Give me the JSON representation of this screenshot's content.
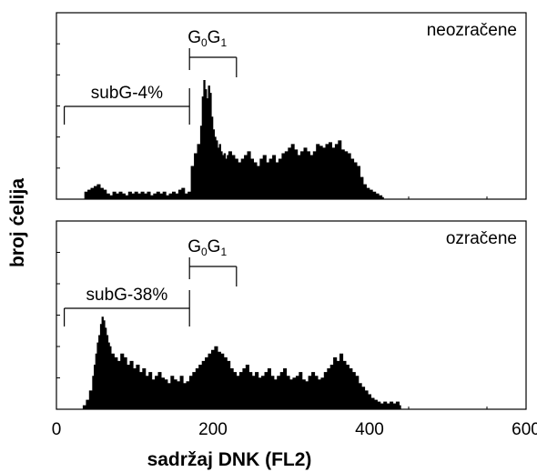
{
  "chart_data": {
    "type": "histogram",
    "xlabel": "sadržaj DNK (FL2)",
    "ylabel": "broj ćelija",
    "x_ticks": [
      0,
      200,
      400,
      600
    ],
    "x_tick_labels": [
      "0",
      "200",
      "400",
      "600"
    ],
    "xlim": [
      0,
      600
    ],
    "grid": false,
    "panels": [
      {
        "label": "neozračene",
        "subG_label": "subG-4%",
        "subG_range": [
          10,
          170
        ],
        "G0G1_label": {
          "base": "G",
          "sub1": "0",
          "mid": "G",
          "sub2": "1"
        },
        "G0G1_range": [
          170,
          230
        ],
        "ylim": [
          0,
          100
        ],
        "series": {
          "x": [
            30,
            36,
            40,
            44,
            48,
            52,
            56,
            60,
            64,
            68,
            72,
            76,
            80,
            84,
            88,
            92,
            96,
            100,
            104,
            108,
            112,
            116,
            120,
            124,
            128,
            132,
            136,
            140,
            144,
            148,
            152,
            156,
            160,
            164,
            168,
            172,
            176,
            180,
            184,
            186,
            188,
            190,
            192,
            194,
            196,
            198,
            200,
            202,
            204,
            206,
            208,
            210,
            212,
            214,
            216,
            218,
            220,
            224,
            228,
            232,
            236,
            240,
            244,
            248,
            252,
            256,
            260,
            264,
            268,
            272,
            276,
            280,
            284,
            288,
            292,
            296,
            300,
            304,
            308,
            312,
            316,
            320,
            324,
            328,
            332,
            336,
            340,
            344,
            348,
            352,
            356,
            360,
            364,
            368,
            372,
            376,
            380,
            384,
            388,
            392,
            396,
            400,
            404,
            408,
            412,
            416,
            418
          ],
          "y": [
            0,
            4,
            5,
            6,
            7,
            8,
            6,
            5,
            3,
            2,
            4,
            3,
            4,
            3,
            2,
            4,
            3,
            4,
            3,
            4,
            3,
            4,
            2,
            3,
            4,
            3,
            4,
            2,
            3,
            4,
            3,
            5,
            6,
            3,
            4,
            18,
            25,
            30,
            40,
            56,
            65,
            60,
            55,
            62,
            58,
            45,
            38,
            34,
            32,
            28,
            30,
            26,
            24,
            25,
            22,
            24,
            26,
            24,
            22,
            20,
            22,
            24,
            26,
            22,
            20,
            18,
            22,
            24,
            20,
            22,
            24,
            20,
            22,
            25,
            26,
            28,
            30,
            27,
            24,
            26,
            28,
            26,
            24,
            26,
            30,
            29,
            28,
            30,
            31,
            28,
            30,
            32,
            27,
            26,
            25,
            22,
            20,
            18,
            12,
            8,
            6,
            5,
            4,
            3,
            2,
            1,
            0
          ]
        }
      },
      {
        "label": "ozračene",
        "subG_label": "subG-38%",
        "subG_range": [
          10,
          170
        ],
        "G0G1_label": {
          "base": "G",
          "sub1": "0",
          "mid": "G",
          "sub2": "1"
        },
        "G0G1_range": [
          170,
          230
        ],
        "ylim": [
          0,
          100
        ],
        "series": {
          "x": [
            30,
            34,
            38,
            42,
            46,
            48,
            50,
            52,
            54,
            56,
            58,
            60,
            62,
            64,
            66,
            68,
            70,
            74,
            78,
            82,
            86,
            90,
            94,
            98,
            102,
            106,
            110,
            114,
            118,
            122,
            126,
            130,
            134,
            138,
            142,
            146,
            150,
            154,
            158,
            162,
            166,
            170,
            174,
            178,
            182,
            186,
            190,
            194,
            198,
            202,
            206,
            210,
            214,
            218,
            222,
            226,
            230,
            234,
            238,
            242,
            246,
            250,
            254,
            258,
            262,
            266,
            270,
            274,
            278,
            282,
            286,
            290,
            294,
            298,
            302,
            306,
            310,
            314,
            318,
            322,
            326,
            330,
            334,
            338,
            342,
            346,
            350,
            354,
            358,
            362,
            366,
            370,
            374,
            378,
            382,
            386,
            390,
            394,
            398,
            402,
            406,
            410,
            414,
            418,
            422,
            426,
            430,
            434,
            438,
            440
          ],
          "y": [
            0,
            2,
            5,
            10,
            18,
            24,
            30,
            36,
            40,
            46,
            50,
            48,
            44,
            40,
            36,
            34,
            30,
            28,
            26,
            30,
            28,
            24,
            26,
            22,
            24,
            20,
            22,
            18,
            20,
            16,
            18,
            20,
            17,
            16,
            14,
            18,
            16,
            15,
            18,
            14,
            15,
            18,
            20,
            22,
            24,
            26,
            28,
            30,
            32,
            34,
            31,
            30,
            28,
            26,
            22,
            20,
            18,
            20,
            22,
            24,
            20,
            18,
            20,
            17,
            18,
            20,
            22,
            18,
            16,
            18,
            20,
            22,
            18,
            16,
            17,
            18,
            20,
            16,
            15,
            18,
            20,
            18,
            16,
            17,
            20,
            22,
            24,
            28,
            26,
            30,
            26,
            24,
            22,
            20,
            18,
            14,
            12,
            10,
            8,
            6,
            5,
            4,
            3,
            4,
            3,
            4,
            3,
            4,
            2,
            0
          ]
        }
      }
    ]
  }
}
